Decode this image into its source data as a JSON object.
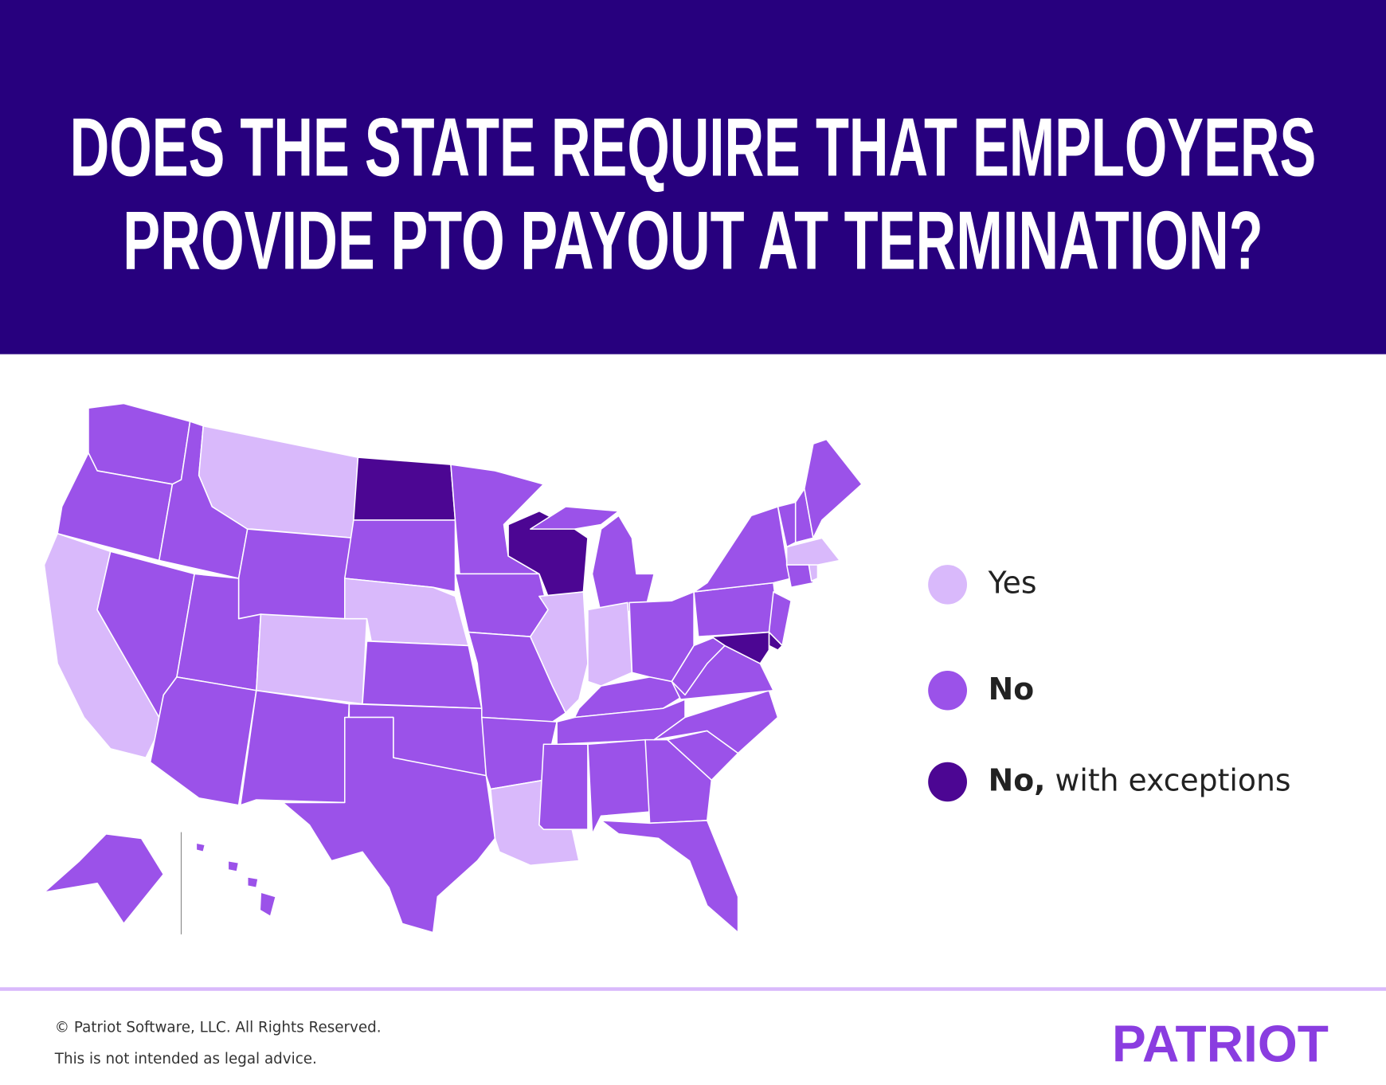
{
  "header": {
    "title_lines": [
      "DOES THE STATE REQUIRE THAT EMPLOYERS",
      "PROVIDE PTO PAYOUT AT TERMINATION?"
    ],
    "background": "#27007e"
  },
  "legend": {
    "items": [
      {
        "label": "Yes",
        "color": "#d9b9fb"
      },
      {
        "label": "No",
        "color": "#9b52e9"
      },
      {
        "label": "No,",
        "detail": "with exceptions",
        "color": "#4c0693"
      }
    ]
  },
  "footer": {
    "lines": [
      "© Patriot Software, LLC. All Rights Reserved.",
      "This is not intended as legal advice."
    ],
    "rule_color": "#d9b9fb"
  },
  "logo": {
    "text": "PATRIOT",
    "color": "#8a3de0"
  }
}
